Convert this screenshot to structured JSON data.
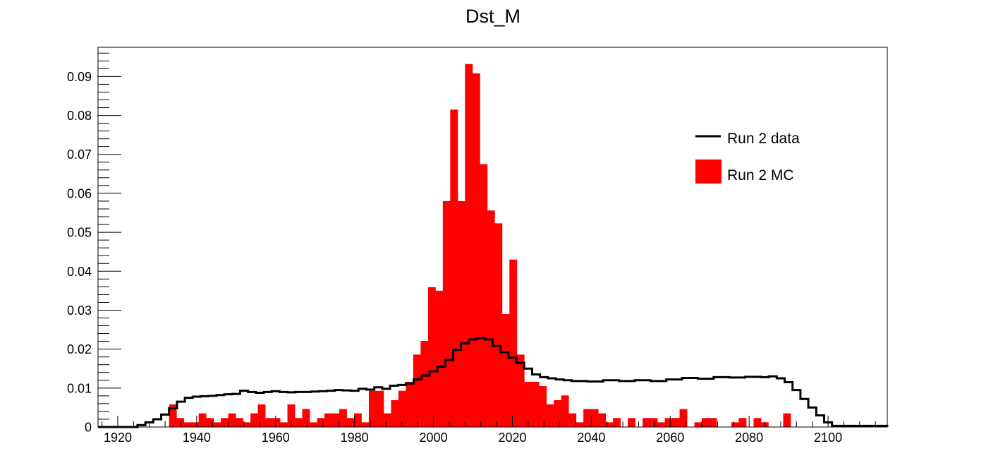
{
  "chart_data": {
    "type": "bar",
    "title": "Dst_M",
    "xlabel": "",
    "ylabel": "",
    "xlim": [
      1915,
      2115
    ],
    "ylim": [
      0,
      0.0975
    ],
    "bin_width": 1.875,
    "x_ticks": [
      1920,
      1940,
      1960,
      1980,
      2000,
      2020,
      2040,
      2060,
      2080,
      2100
    ],
    "y_ticks": [
      0,
      0.01,
      0.02,
      0.03,
      0.04,
      0.05,
      0.06,
      0.07,
      0.08,
      0.09
    ],
    "y_tick_labels": [
      "0",
      "0.01",
      "0.02",
      "0.03",
      "0.04",
      "0.05",
      "0.06",
      "0.07",
      "0.08",
      "0.09"
    ],
    "grid": false,
    "legend_position": "top-right",
    "series": [
      {
        "name": "Run 2 data",
        "style": "step-line",
        "color": "#000000",
        "bin_edges": [
          1915,
          1925,
          1927,
          1929,
          1931,
          1933,
          1935,
          1937,
          1939,
          1941,
          1943,
          1945,
          1947,
          1949,
          1951,
          1953,
          1955,
          1957,
          1959,
          1961,
          1963,
          1965,
          1967,
          1969,
          1971,
          1973,
          1975,
          1977,
          1979,
          1981,
          1983,
          1985,
          1987,
          1989,
          1991,
          1993,
          1995,
          1997,
          1999,
          2001,
          2003,
          2005,
          2007,
          2009,
          2011,
          2013,
          2015,
          2017,
          2019,
          2021,
          2023,
          2025,
          2027,
          2029,
          2031,
          2033,
          2035,
          2039,
          2043,
          2047,
          2051,
          2055,
          2059,
          2063,
          2067,
          2071,
          2075,
          2079,
          2083,
          2085,
          2087,
          2089,
          2091,
          2093,
          2095,
          2097,
          2099,
          2101,
          2115
        ],
        "values": [
          0,
          0.0005,
          0.0012,
          0.002,
          0.0032,
          0.0048,
          0.0065,
          0.0075,
          0.0078,
          0.0079,
          0.008,
          0.0082,
          0.0084,
          0.0085,
          0.0093,
          0.009,
          0.0088,
          0.009,
          0.0092,
          0.009,
          0.0089,
          0.009,
          0.009,
          0.0091,
          0.0092,
          0.0093,
          0.0095,
          0.0094,
          0.0093,
          0.0098,
          0.0096,
          0.0102,
          0.0098,
          0.0106,
          0.0108,
          0.0112,
          0.0122,
          0.0132,
          0.0143,
          0.0155,
          0.0172,
          0.0198,
          0.0215,
          0.0225,
          0.0228,
          0.0225,
          0.0208,
          0.0192,
          0.0178,
          0.0165,
          0.015,
          0.0135,
          0.0128,
          0.0125,
          0.0122,
          0.012,
          0.0118,
          0.0117,
          0.012,
          0.0118,
          0.012,
          0.0118,
          0.0122,
          0.0126,
          0.0124,
          0.0128,
          0.0127,
          0.0129,
          0.0128,
          0.013,
          0.0125,
          0.0115,
          0.0095,
          0.0072,
          0.005,
          0.003,
          0.0012,
          0.0003,
          0.0001
        ]
      },
      {
        "name": "Run 2 MC",
        "style": "filled-histogram",
        "color": "#ff0000",
        "bins": [
          [
            1933.0,
            0.0058
          ],
          [
            1934.875,
            0.0023
          ],
          [
            1936.75,
            0.0012
          ],
          [
            1938.625,
            0.0012
          ],
          [
            1940.5,
            0.0035
          ],
          [
            1942.375,
            0.0023
          ],
          [
            1944.25,
            0.0012
          ],
          [
            1946.125,
            0.0023
          ],
          [
            1948.0,
            0.0035
          ],
          [
            1949.875,
            0.0023
          ],
          [
            1951.75,
            0.0012
          ],
          [
            1953.625,
            0.0035
          ],
          [
            1955.5,
            0.0058
          ],
          [
            1957.375,
            0.0023
          ],
          [
            1959.25,
            0.0023
          ],
          [
            1961.125,
            0.0012
          ],
          [
            1963.0,
            0.0058
          ],
          [
            1964.875,
            0.0023
          ],
          [
            1966.75,
            0.0046
          ],
          [
            1968.625,
            0.0012
          ],
          [
            1970.5,
            0.0023
          ],
          [
            1972.375,
            0.0035
          ],
          [
            1974.25,
            0.0035
          ],
          [
            1976.125,
            0.0046
          ],
          [
            1978.0,
            0.0023
          ],
          [
            1979.875,
            0.0035
          ],
          [
            1981.75,
            0.0012
          ],
          [
            1983.625,
            0.0093
          ],
          [
            1985.5,
            0.0093
          ],
          [
            1987.375,
            0.0035
          ],
          [
            1989.25,
            0.0069
          ],
          [
            1991.125,
            0.0093
          ],
          [
            1993.0,
            0.0116
          ],
          [
            1994.875,
            0.0186
          ],
          [
            1996.75,
            0.0221
          ],
          [
            1998.625,
            0.0359
          ],
          [
            2000.5,
            0.035
          ],
          [
            2002.375,
            0.058
          ],
          [
            2004.25,
            0.0815
          ],
          [
            2006.125,
            0.058
          ],
          [
            2008.0,
            0.0932
          ],
          [
            2009.875,
            0.0908
          ],
          [
            2011.75,
            0.0675
          ],
          [
            2013.625,
            0.0556
          ],
          [
            2015.5,
            0.0523
          ],
          [
            2017.375,
            0.029
          ],
          [
            2019.25,
            0.043
          ],
          [
            2021.125,
            0.0186
          ],
          [
            2023.0,
            0.0116
          ],
          [
            2024.875,
            0.0116
          ],
          [
            2026.75,
            0.0105
          ],
          [
            2028.625,
            0.0058
          ],
          [
            2030.5,
            0.0069
          ],
          [
            2032.375,
            0.0081
          ],
          [
            2034.25,
            0.0035
          ],
          [
            2036.125,
            0.0012
          ],
          [
            2038.0,
            0.0046
          ],
          [
            2039.875,
            0.0046
          ],
          [
            2041.75,
            0.0035
          ],
          [
            2043.625,
            0.0012
          ],
          [
            2045.5,
            0.0023
          ],
          [
            2049.25,
            0.0023
          ],
          [
            2053.0,
            0.0023
          ],
          [
            2054.875,
            0.0023
          ],
          [
            2056.75,
            0.0012
          ],
          [
            2058.625,
            0.0023
          ],
          [
            2060.5,
            0.0023
          ],
          [
            2062.375,
            0.0046
          ],
          [
            2066.125,
            0.0012
          ],
          [
            2068.0,
            0.0023
          ],
          [
            2069.875,
            0.0023
          ],
          [
            2075.5,
            0.0012
          ],
          [
            2077.375,
            0.0023
          ],
          [
            2081.125,
            0.0023
          ],
          [
            2083.0,
            0.0012
          ],
          [
            2088.625,
            0.0035
          ]
        ]
      }
    ]
  }
}
